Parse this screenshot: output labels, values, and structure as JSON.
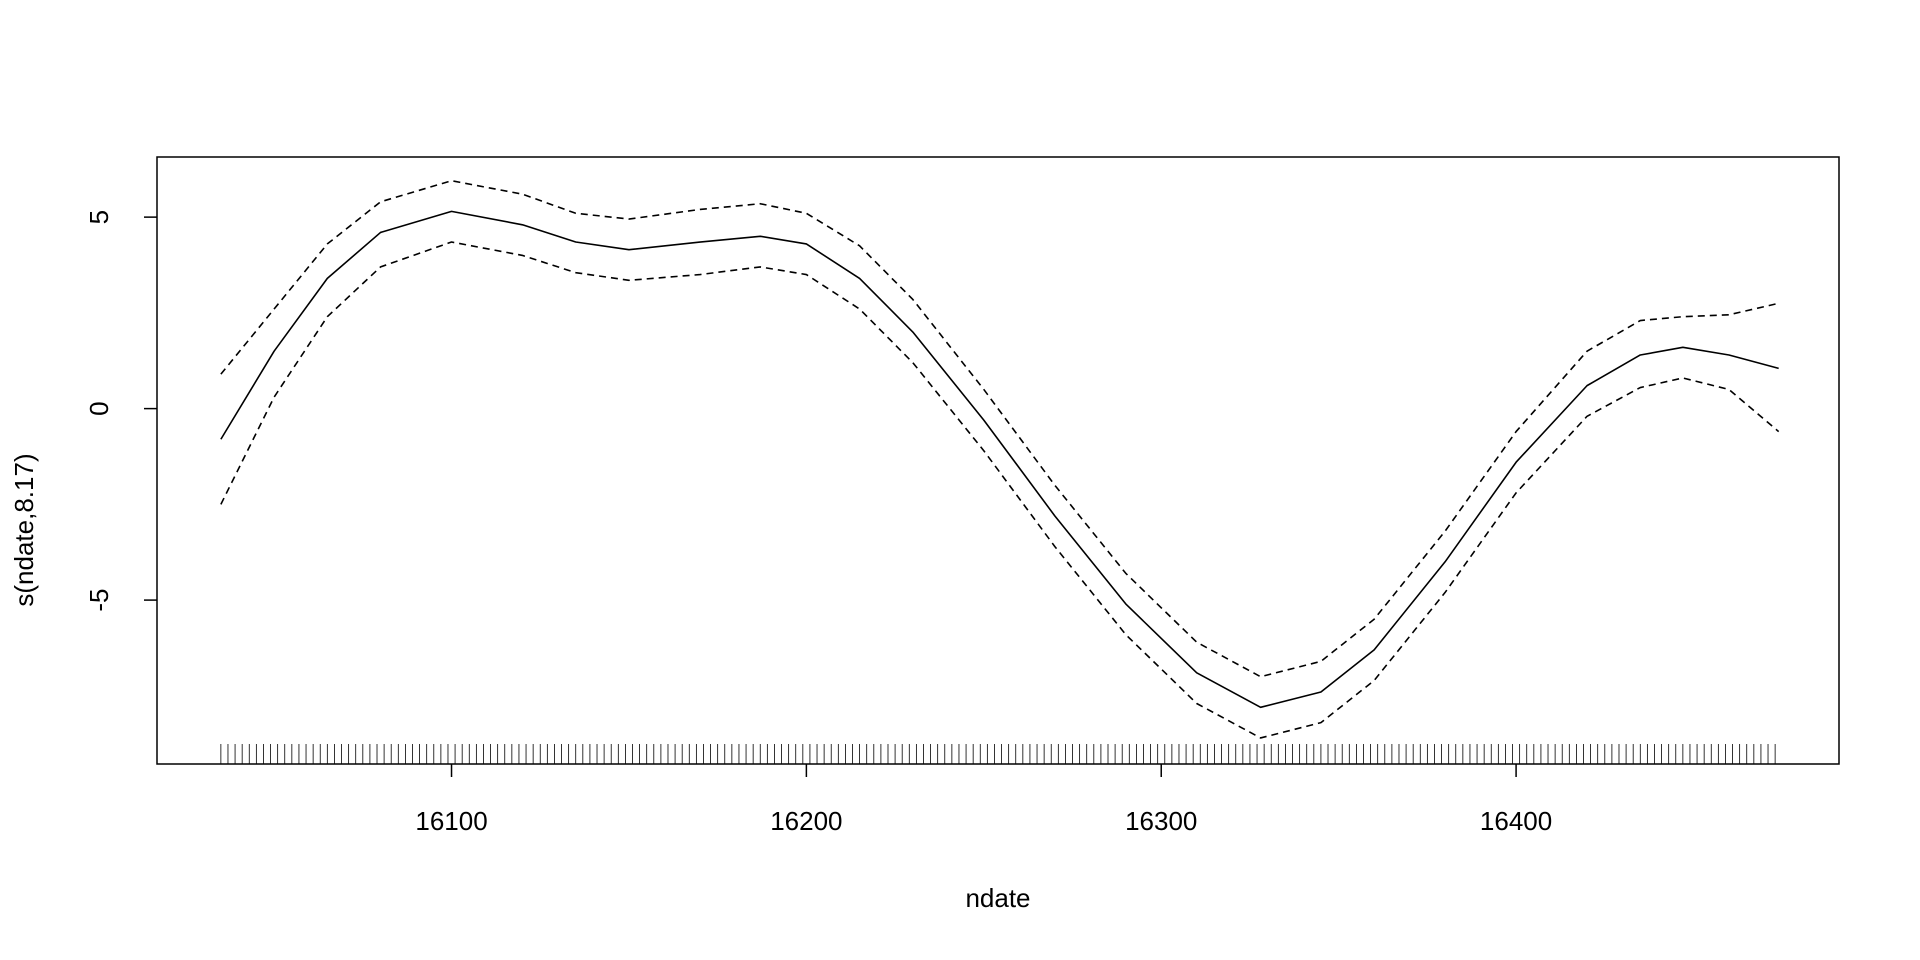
{
  "chart_data": {
    "type": "line",
    "xlabel": "ndate",
    "ylabel": "s(ndate,8.17)",
    "x": [
      16035,
      16050,
      16065,
      16080,
      16100,
      16120,
      16135,
      16150,
      16170,
      16187,
      16200,
      16215,
      16230,
      16250,
      16270,
      16290,
      16310,
      16328,
      16345,
      16360,
      16380,
      16400,
      16420,
      16435,
      16447,
      16460,
      16474
    ],
    "series": [
      {
        "color": "#000000",
        "style": "solid",
        "values": [
          -0.8,
          1.5,
          3.4,
          4.6,
          5.15,
          4.8,
          4.35,
          4.15,
          4.35,
          4.5,
          4.3,
          3.4,
          2.0,
          -0.3,
          -2.8,
          -5.1,
          -6.9,
          -7.8,
          -7.4,
          -6.3,
          -4.0,
          -1.4,
          0.6,
          1.4,
          1.6,
          1.4,
          1.05
        ]
      },
      {
        "color": "#000000",
        "style": "dashed",
        "values": [
          0.9,
          2.6,
          4.3,
          5.4,
          5.95,
          5.6,
          5.1,
          4.95,
          5.2,
          5.35,
          5.1,
          4.25,
          2.85,
          0.5,
          -2.0,
          -4.3,
          -6.1,
          -7.0,
          -6.6,
          -5.5,
          -3.2,
          -0.6,
          1.5,
          2.3,
          2.4,
          2.45,
          2.75
        ]
      },
      {
        "color": "#000000",
        "style": "dashed",
        "values": [
          -2.5,
          0.3,
          2.4,
          3.7,
          4.35,
          4.0,
          3.55,
          3.35,
          3.5,
          3.7,
          3.5,
          2.6,
          1.2,
          -1.1,
          -3.6,
          -5.9,
          -7.7,
          -8.6,
          -8.2,
          -7.1,
          -4.8,
          -2.2,
          -0.2,
          0.55,
          0.8,
          0.5,
          -0.6
        ]
      }
    ],
    "rug": [
      16035,
      16037,
      16039,
      16041,
      16043,
      16045,
      16047,
      16049,
      16051,
      16053,
      16055,
      16057,
      16059,
      16061,
      16063,
      16065,
      16067,
      16069,
      16071,
      16073,
      16075,
      16077,
      16079,
      16081,
      16083,
      16085,
      16087,
      16089,
      16091,
      16093,
      16095,
      16097,
      16099,
      16101,
      16103,
      16105,
      16107,
      16109,
      16111,
      16113,
      16115,
      16117,
      16119,
      16121,
      16123,
      16125,
      16127,
      16129,
      16131,
      16133,
      16135,
      16137,
      16139,
      16141,
      16143,
      16145,
      16147,
      16149,
      16151,
      16153,
      16155,
      16157,
      16159,
      16161,
      16163,
      16165,
      16167,
      16169,
      16171,
      16173,
      16175,
      16177,
      16179,
      16181,
      16183,
      16185,
      16187,
      16189,
      16191,
      16193,
      16195,
      16197,
      16199,
      16201,
      16203,
      16205,
      16207,
      16209,
      16211,
      16213,
      16215,
      16217,
      16219,
      16221,
      16223,
      16225,
      16227,
      16229,
      16231,
      16233,
      16235,
      16237,
      16239,
      16241,
      16243,
      16245,
      16247,
      16249,
      16251,
      16253,
      16255,
      16257,
      16259,
      16261,
      16263,
      16265,
      16267,
      16269,
      16271,
      16273,
      16275,
      16277,
      16279,
      16281,
      16283,
      16285,
      16287,
      16289,
      16291,
      16293,
      16295,
      16297,
      16299,
      16301,
      16303,
      16305,
      16307,
      16309,
      16311,
      16313,
      16315,
      16317,
      16319,
      16321,
      16323,
      16325,
      16327,
      16329,
      16331,
      16333,
      16335,
      16337,
      16339,
      16341,
      16343,
      16345,
      16347,
      16349,
      16351,
      16353,
      16355,
      16357,
      16359,
      16361,
      16363,
      16365,
      16367,
      16369,
      16371,
      16373,
      16375,
      16377,
      16379,
      16381,
      16383,
      16385,
      16387,
      16389,
      16391,
      16393,
      16395,
      16397,
      16399,
      16401,
      16403,
      16405,
      16407,
      16409,
      16411,
      16413,
      16415,
      16417,
      16419,
      16421,
      16423,
      16425,
      16427,
      16429,
      16431,
      16433,
      16435,
      16437,
      16439,
      16441,
      16443,
      16445,
      16447,
      16449,
      16451,
      16453,
      16455,
      16457,
      16459,
      16461,
      16463,
      16465,
      16467,
      16469,
      16471,
      16473
    ],
    "xlim": [
      16017,
      16491
    ],
    "xticks": [
      16100,
      16200,
      16300,
      16400
    ],
    "ylim": [
      -9.28,
      6.57
    ],
    "yticks": [
      -5,
      0,
      5
    ]
  }
}
